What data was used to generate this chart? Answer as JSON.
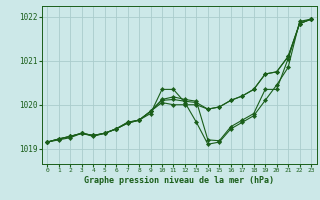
{
  "xlabel": "Graphe pression niveau de la mer (hPa)",
  "ylim": [
    1018.65,
    1022.25
  ],
  "xlim": [
    -0.5,
    23.5
  ],
  "yticks": [
    1019,
    1020,
    1021,
    1022
  ],
  "xticks": [
    0,
    1,
    2,
    3,
    4,
    5,
    6,
    7,
    8,
    9,
    10,
    11,
    12,
    13,
    14,
    15,
    16,
    17,
    18,
    19,
    20,
    21,
    22,
    23
  ],
  "bg_color": "#cce8e8",
  "line_color": "#1a5e1a",
  "grid_color": "#aacccc",
  "series": [
    [
      1019.15,
      1019.2,
      1019.25,
      1019.35,
      1019.3,
      1019.35,
      1019.45,
      1019.6,
      1019.65,
      1019.8,
      1020.35,
      1020.35,
      1020.05,
      1019.6,
      1019.1,
      1019.15,
      1019.45,
      1019.6,
      1019.75,
      1020.1,
      1020.45,
      1020.85,
      1021.9,
      1021.95
    ],
    [
      1019.15,
      1019.22,
      1019.28,
      1019.35,
      1019.3,
      1019.35,
      1019.45,
      1019.58,
      1019.65,
      1019.85,
      1020.05,
      1020.0,
      1020.0,
      1020.0,
      1019.9,
      1019.95,
      1020.1,
      1020.2,
      1020.35,
      1020.7,
      1020.75,
      1021.1,
      1021.85,
      1021.95
    ],
    [
      1019.15,
      1019.22,
      1019.28,
      1019.35,
      1019.3,
      1019.35,
      1019.45,
      1019.58,
      1019.65,
      1019.85,
      1020.1,
      1020.12,
      1020.08,
      1020.05,
      1019.9,
      1019.95,
      1020.1,
      1020.2,
      1020.35,
      1020.7,
      1020.75,
      1021.1,
      1021.85,
      1021.95
    ],
    [
      1019.15,
      1019.22,
      1019.28,
      1019.35,
      1019.28,
      1019.35,
      1019.45,
      1019.6,
      1019.65,
      1019.85,
      1020.12,
      1020.18,
      1020.12,
      1020.08,
      1019.2,
      1019.18,
      1019.5,
      1019.65,
      1019.8,
      1020.35,
      1020.35,
      1021.05,
      1021.85,
      1021.95
    ]
  ]
}
